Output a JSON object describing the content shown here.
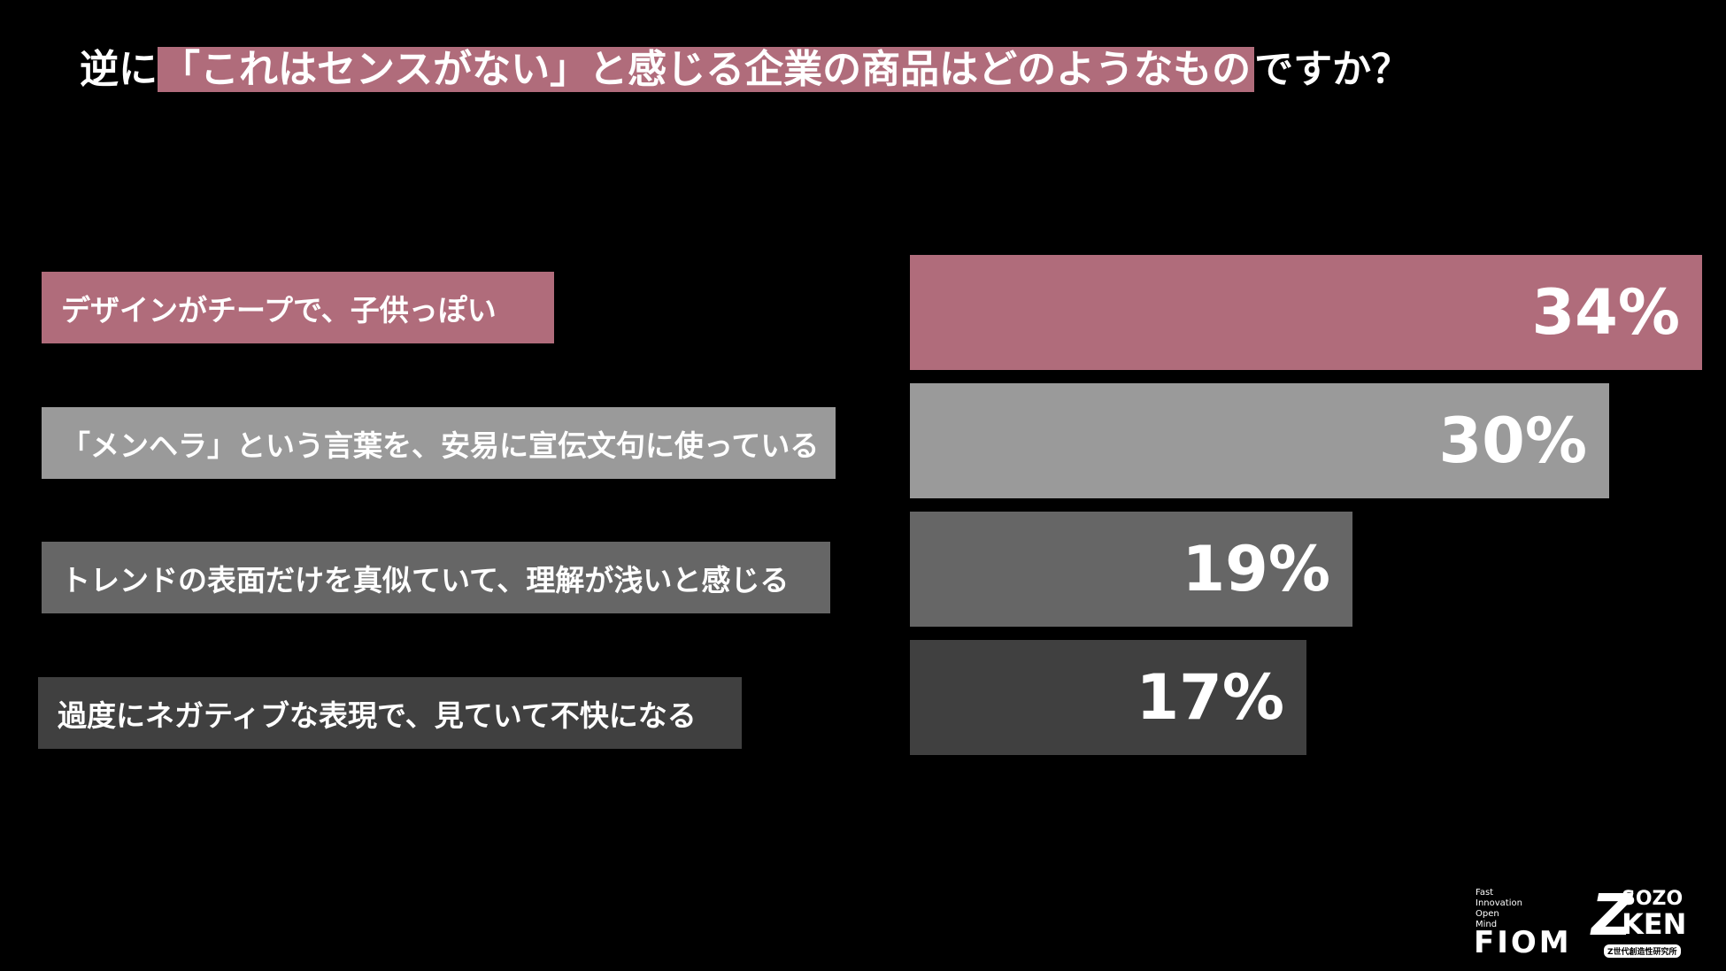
{
  "title": {
    "prefix": "逆に",
    "highlight": "「これはセンスがない」と感じる企業の商品はどのようなもの",
    "suffix": "ですか？"
  },
  "colors": {
    "highlight": "#b06c7b",
    "bar1": "#b06c7b",
    "bar2": "#9a9a9a",
    "bar3": "#666666",
    "bar4": "#404040"
  },
  "chart_data": {
    "type": "bar",
    "orientation": "horizontal",
    "categories": [
      "デザインがチープで、子供っぽい",
      "「メンヘラ」という言葉を、安易に宣伝文句に使っている",
      "トレンドの表面だけを真似ていて、理解が浅いと感じる",
      "過度にネガティブな表現で、見ていて不快になる"
    ],
    "values": [
      34,
      30,
      19,
      17
    ],
    "value_labels": [
      "34%",
      "30%",
      "19%",
      "17%"
    ],
    "unit": "%",
    "xlim": [
      0,
      34
    ],
    "grid": false,
    "legend": "none"
  },
  "logos": {
    "fiom_tagline": [
      "Fast",
      "Innovation",
      "Open",
      "Mind"
    ],
    "fiom": "FIOM",
    "zk_mark": "Z",
    "zk_sozo": "SOZO",
    "zk_ken": "KEN",
    "zk_sub": "Z世代創造性研究所"
  }
}
